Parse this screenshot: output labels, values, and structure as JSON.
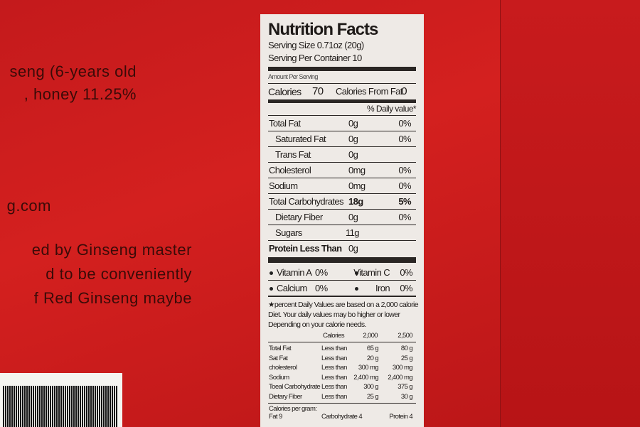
{
  "left_text": [
    "seng (6-years old",
    ", honey 11.25%",
    "g.com",
    "ed by Ginseng master",
    "d to be conveniently",
    "f Red Ginseng maybe"
  ],
  "label": {
    "title": "Nutrition Facts",
    "serving_size": "Serving Size 0.71oz (20g)",
    "servings": "Serving Per Container 10",
    "amount_per_serving": "Amount Per Serving",
    "calories": {
      "label": "Calories",
      "value": "70",
      "fat_label": "Calories From Fat",
      "fat_value": "0"
    },
    "daily_value_header": "% Daily value*",
    "rows": [
      {
        "name": "Total Fat",
        "amount": "0g",
        "dv": "0%"
      },
      {
        "name": "Saturated Fat",
        "amount": "0g",
        "dv": "0%",
        "indent": true
      },
      {
        "name": "Trans Fat",
        "amount": "0g",
        "indent": true
      },
      {
        "name": "Cholesterol",
        "amount": "0mg",
        "dv": "0%"
      },
      {
        "name": "Sodium",
        "amount": "0mg",
        "dv": "0%"
      },
      {
        "name": "Total Carbohydrates",
        "amount": "18g",
        "dv": "5%"
      },
      {
        "name": "Dietary Fiber",
        "amount": "0g",
        "dv": "0%",
        "indent": true
      },
      {
        "name": "Sugars",
        "amount": "11g",
        "indent": true
      },
      {
        "name": "Protein Less Than",
        "amount": "0g"
      }
    ],
    "vitamins": [
      [
        "Vitamin A",
        "0%",
        "Vitamin C",
        "0%"
      ],
      [
        "Calcium",
        "0%",
        "Iron",
        "0%"
      ]
    ],
    "footnote": [
      "★percent Daily Values are based on a 2,000 calorie",
      "Diet.  Your daily values may bo higher or lower",
      "Depending on your calorie needs."
    ],
    "table": {
      "header": [
        "Calories",
        "2,000",
        "2,500"
      ],
      "rows": [
        [
          "Total Fat",
          "Less than",
          "65 g",
          "80 g"
        ],
        [
          "Sat Fat",
          "Less than",
          "20 g",
          "25 g"
        ],
        [
          "cholesterol",
          "Less than",
          "300 mg",
          "300 mg"
        ],
        [
          "Sodium",
          "Less than",
          "2,400 mg",
          "2,400 mg"
        ],
        [
          "Toeal Carbohydrate",
          "Less than",
          "300 g",
          "375 g"
        ],
        [
          "Dietary Fiber",
          "Less than",
          "25 g",
          "30 g"
        ]
      ]
    },
    "per_gram": {
      "title": "Calories per gram:",
      "items": [
        "Fat 9",
        "Carbohydrate 4",
        "Protein 4"
      ]
    }
  }
}
